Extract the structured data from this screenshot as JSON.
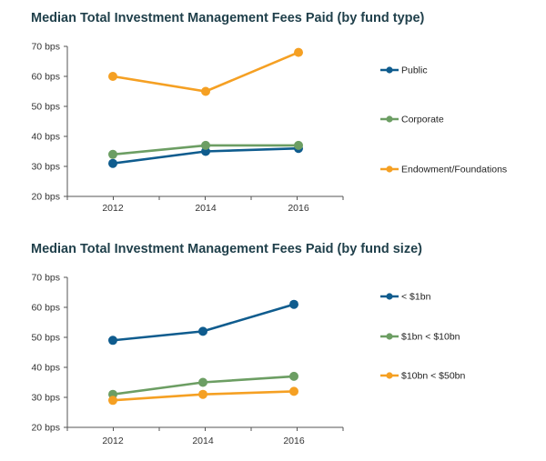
{
  "chart_data": [
    {
      "type": "line",
      "title": "Median Total Investment Management Fees Paid (by fund type)",
      "categories": [
        "2012",
        "2014",
        "2016"
      ],
      "yticks": [
        "20 bps",
        "30 bps",
        "40 bps",
        "50 bps",
        "60 bps",
        "70 bps"
      ],
      "ylim": [
        20,
        70
      ],
      "series": [
        {
          "name": "Public",
          "values": [
            31,
            35,
            36
          ],
          "color": "#0f5c8e"
        },
        {
          "name": "Corporate",
          "values": [
            34,
            37,
            37
          ],
          "color": "#6c9e63"
        },
        {
          "name": "Endowment/Foundations",
          "values": [
            60,
            55,
            68
          ],
          "color": "#f5a023"
        }
      ],
      "legend": "right"
    },
    {
      "type": "line",
      "title": "Median Total Investment Management Fees Paid (by fund size)",
      "categories": [
        "2012",
        "2014",
        "2016"
      ],
      "yticks": [
        "20 bps",
        "30 bps",
        "40 bps",
        "50 bps",
        "60 bps",
        "70 bps"
      ],
      "ylim": [
        20,
        70
      ],
      "series": [
        {
          "name": "< $1bn",
          "values": [
            49,
            52,
            61
          ],
          "color": "#0f5c8e"
        },
        {
          "name": "$1bn < $10bn",
          "values": [
            31,
            35,
            37
          ],
          "color": "#6c9e63"
        },
        {
          "name": "$10bn < $50bn",
          "values": [
            29,
            31,
            32
          ],
          "color": "#f5a023"
        }
      ],
      "legend": "right"
    }
  ]
}
